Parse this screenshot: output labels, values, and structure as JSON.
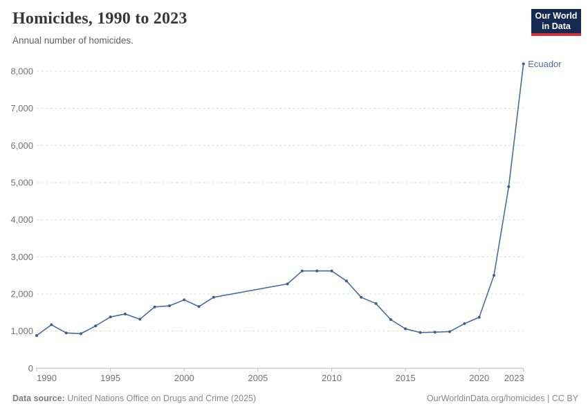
{
  "header": {
    "title": "Homicides, 1990 to 2023",
    "subtitle": "Annual number of homicides."
  },
  "logo": {
    "line1": "Our World",
    "line2": "in Data",
    "bg_color": "#142a52",
    "accent_color": "#d3353b"
  },
  "chart_data": {
    "type": "line",
    "title": "Homicides, 1990 to 2023",
    "subtitle": "Annual number of homicides.",
    "xlabel": "",
    "ylabel": "",
    "x": [
      1990,
      1991,
      1992,
      1993,
      1994,
      1995,
      1996,
      1997,
      1998,
      1999,
      2000,
      2001,
      2002,
      2003,
      2004,
      2005,
      2006,
      2007,
      2008,
      2009,
      2010,
      2011,
      2012,
      2013,
      2014,
      2015,
      2016,
      2017,
      2018,
      2019,
      2020,
      2021,
      2022,
      2023
    ],
    "series": [
      {
        "name": "Ecuador",
        "color": "#4C6A9C",
        "marker_color": "#3d5c8f",
        "label_color": "#4C6FA5",
        "values": [
          880,
          1170,
          950,
          930,
          1140,
          1380,
          1460,
          1320,
          1650,
          1680,
          1840,
          1660,
          1910,
          null,
          null,
          null,
          null,
          2270,
          2620,
          2620,
          2620,
          2350,
          1910,
          1740,
          1310,
          1060,
          960,
          970,
          985,
          1200,
          1370,
          2500,
          4890,
          8200
        ]
      }
    ],
    "missing_years_note": "no markers 2003-2006; straight interpolated segment between 2002 and 2007",
    "x_ticks": [
      1990,
      1995,
      2000,
      2005,
      2010,
      2015,
      2020,
      2023
    ],
    "y_ticks": [
      0,
      1000,
      2000,
      3000,
      4000,
      5000,
      6000,
      7000,
      8000
    ],
    "y_tick_labels": [
      "0",
      "1,000",
      "2,000",
      "3,000",
      "4,000",
      "5,000",
      "6,000",
      "7,000",
      "8,000"
    ],
    "ylim": [
      0,
      8400
    ],
    "xlim": [
      1990,
      2023
    ],
    "grid": "horizontal-dashed",
    "legend": "end-of-line entity label",
    "entity_label": "Ecuador"
  },
  "footer": {
    "source_label": "Data source:",
    "source_value": " United Nations Office on Drugs and Crime (2025)",
    "link": "OurWorldinData.org/homicides | CC BY"
  }
}
